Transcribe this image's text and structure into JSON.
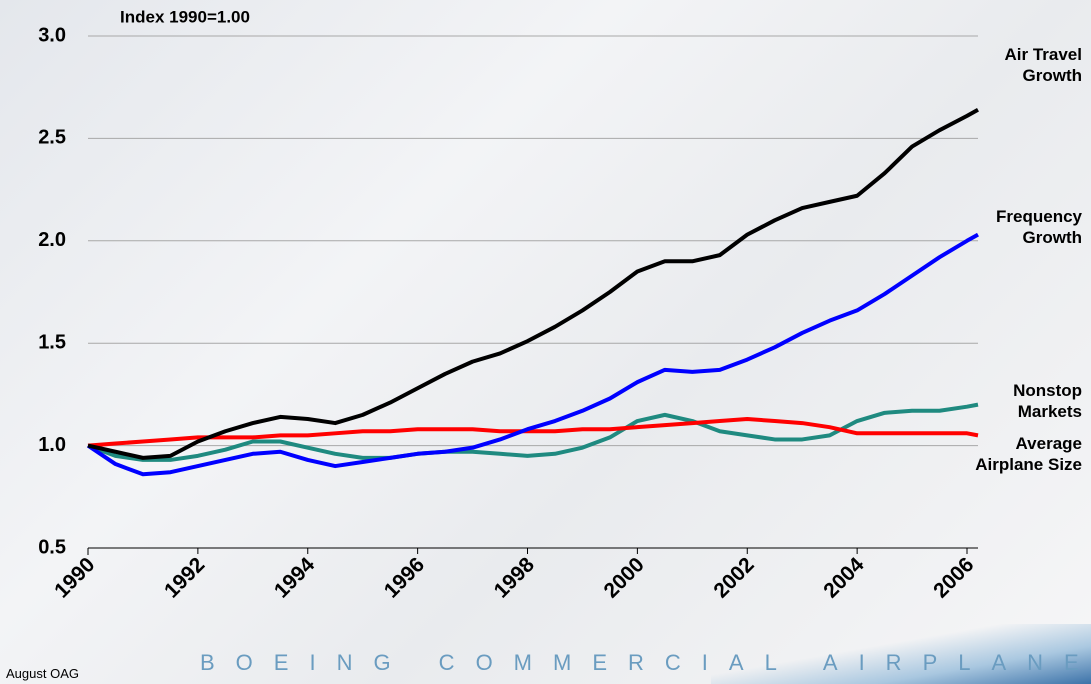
{
  "chart_data": {
    "type": "line",
    "title": "Index 1990=1.00",
    "x": [
      1990,
      1990.5,
      1991,
      1991.5,
      1992,
      1992.5,
      1993,
      1993.5,
      1994,
      1994.5,
      1995,
      1995.5,
      1996,
      1996.5,
      1997,
      1997.5,
      1998,
      1998.5,
      1999,
      1999.5,
      2000,
      2000.5,
      2001,
      2001.5,
      2002,
      2002.5,
      2003,
      2003.5,
      2004,
      2004.5,
      2005,
      2005.5,
      2006,
      2006.2
    ],
    "series": [
      {
        "name": "Air Travel Growth",
        "color": "#000000",
        "values": [
          1.0,
          0.97,
          0.94,
          0.95,
          1.02,
          1.07,
          1.11,
          1.14,
          1.13,
          1.11,
          1.15,
          1.21,
          1.28,
          1.35,
          1.41,
          1.45,
          1.51,
          1.58,
          1.66,
          1.75,
          1.85,
          1.9,
          1.9,
          1.93,
          2.03,
          2.1,
          2.16,
          2.19,
          2.22,
          2.33,
          2.46,
          2.54,
          2.61,
          2.64
        ]
      },
      {
        "name": "Frequency Growth",
        "color": "#0000ff",
        "values": [
          1.0,
          0.91,
          0.86,
          0.87,
          0.9,
          0.93,
          0.96,
          0.97,
          0.93,
          0.9,
          0.92,
          0.94,
          0.96,
          0.97,
          0.99,
          1.03,
          1.08,
          1.12,
          1.17,
          1.23,
          1.31,
          1.37,
          1.36,
          1.37,
          1.42,
          1.48,
          1.55,
          1.61,
          1.66,
          1.74,
          1.83,
          1.92,
          2.0,
          2.03
        ]
      },
      {
        "name": "Nonstop Markets",
        "color": "#1f8a80",
        "values": [
          1.0,
          0.95,
          0.93,
          0.93,
          0.95,
          0.98,
          1.02,
          1.02,
          0.99,
          0.96,
          0.94,
          0.94,
          0.96,
          0.97,
          0.97,
          0.96,
          0.95,
          0.96,
          0.99,
          1.04,
          1.12,
          1.15,
          1.12,
          1.07,
          1.05,
          1.03,
          1.03,
          1.05,
          1.12,
          1.16,
          1.17,
          1.17,
          1.19,
          1.2
        ]
      },
      {
        "name": "Average Airplane Size",
        "color": "#ff0000",
        "values": [
          1.0,
          1.01,
          1.02,
          1.03,
          1.04,
          1.04,
          1.04,
          1.05,
          1.05,
          1.06,
          1.07,
          1.07,
          1.08,
          1.08,
          1.08,
          1.07,
          1.07,
          1.07,
          1.08,
          1.08,
          1.09,
          1.1,
          1.11,
          1.12,
          1.13,
          1.12,
          1.11,
          1.09,
          1.06,
          1.06,
          1.06,
          1.06,
          1.06,
          1.05
        ]
      }
    ],
    "xlim": [
      1990,
      2006.2
    ],
    "xticks": [
      1990,
      1992,
      1994,
      1996,
      1998,
      2000,
      2002,
      2004,
      2006
    ],
    "ylim": [
      0.5,
      3
    ],
    "yticks": [
      0.5,
      {
        "value": 1,
        "label": "1.0"
      },
      1.5,
      {
        "value": 2,
        "label": "2.0"
      },
      2.5,
      {
        "value": 3,
        "label": "3.0"
      }
    ],
    "grid": true
  },
  "footer": {
    "source": "August OAG",
    "brand": "BOEING COMMERCIAL AIRPLANES"
  }
}
